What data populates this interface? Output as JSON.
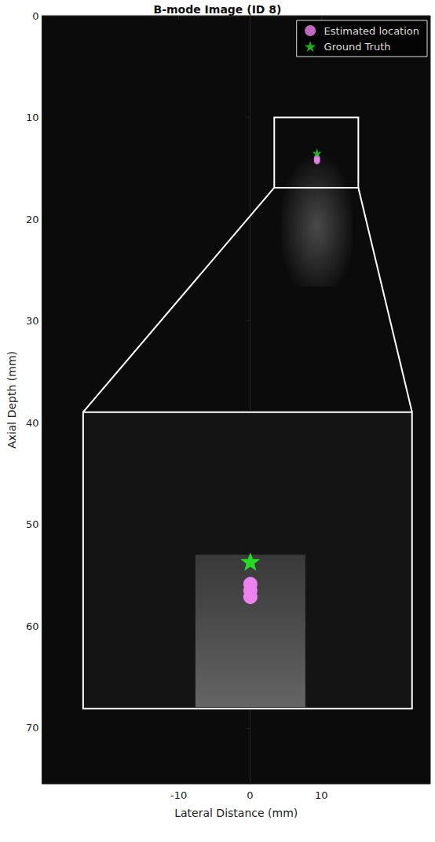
{
  "chart_data": {
    "type": "scatter",
    "title": "B-mode Image (ID 8)",
    "x_label": "Lateral Distance (mm)",
    "y_label": "Axial Depth (mm)",
    "xlim": [
      -29.2,
      25.3
    ],
    "ylim": [
      0,
      75.5
    ],
    "xticks": [
      -10,
      0,
      10
    ],
    "yticks": [
      0,
      10,
      20,
      30,
      40,
      50,
      60,
      70
    ],
    "legend": "upper right",
    "series": [
      {
        "name": "Estimated location",
        "color": "#ee82ee",
        "marker": "circle",
        "x": [
          9.4,
          9.4,
          9.4
        ],
        "y": [
          14.0,
          14.15,
          14.3
        ]
      },
      {
        "name": "Ground Truth",
        "color": "#22dd22",
        "marker": "star",
        "x": [
          9.4
        ],
        "y": [
          13.5
        ]
      }
    ],
    "zoom_region": {
      "x": [
        3.4,
        15.2
      ],
      "y": [
        10,
        16.9
      ]
    }
  }
}
